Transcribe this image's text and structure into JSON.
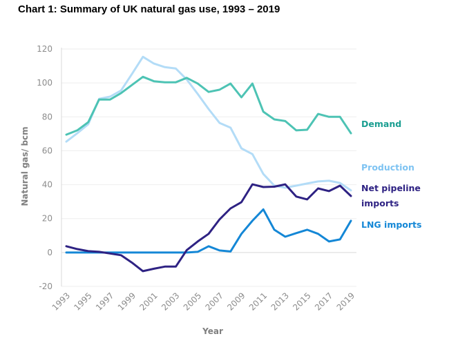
{
  "chart_data": {
    "type": "line",
    "title": "Chart 1: Summary of UK natural gas use, 1993 – 2019",
    "xlabel": "Year",
    "ylabel": "Natural gas/ bcm",
    "ylim": [
      -20,
      120
    ],
    "yticks": [
      -20,
      0,
      20,
      40,
      60,
      80,
      100,
      120
    ],
    "ytick_labels": [
      "-20",
      "0",
      "20",
      "40",
      "60",
      "80",
      "100",
      "120"
    ],
    "xtick_labels": [
      "1993",
      "1995",
      "1997",
      "1999",
      "2001",
      "2003",
      "2005",
      "2007",
      "2009",
      "2011",
      "2013",
      "2015",
      "2017",
      "2019"
    ],
    "grid": true,
    "legend_placement": "right (inline labels)",
    "x": [
      1993,
      1994,
      1995,
      1996,
      1997,
      1998,
      1999,
      2000,
      2001,
      2002,
      2003,
      2004,
      2005,
      2006,
      2007,
      2008,
      2009,
      2010,
      2011,
      2012,
      2013,
      2014,
      2015,
      2016,
      2017,
      2018,
      2019
    ],
    "series": [
      {
        "name": "Demand",
        "label_lines": [
          "Demand"
        ],
        "color": "#4dc3b4",
        "label_color": "#1a9e91",
        "values": [
          69.5,
          72,
          76.8,
          90.2,
          90.2,
          94,
          98.8,
          103.6,
          101,
          100.4,
          100.4,
          103,
          99.6,
          94.7,
          96,
          99.6,
          91.5,
          99.6,
          83,
          78.5,
          77.5,
          72,
          72.4,
          81.7,
          80,
          80,
          70.3
        ]
      },
      {
        "name": "Production",
        "label_lines": [
          "Production"
        ],
        "color": "#b3dcf7",
        "label_color": "#7ec3f2",
        "values": [
          65.4,
          70.3,
          75.6,
          90.6,
          91.9,
          95.5,
          105.3,
          115.4,
          111.4,
          109.3,
          108.5,
          102,
          93.5,
          84.6,
          76.4,
          73.6,
          61.4,
          58,
          46.3,
          39.4,
          38.2,
          39.4,
          40.7,
          41.9,
          42.3,
          41,
          36.6
        ]
      },
      {
        "name": "Net pipeline imports",
        "label_lines": [
          "Net pipeline",
          "imports"
        ],
        "color": "#2e2283",
        "label_color": "#2e2283",
        "values": [
          3.7,
          2,
          0.8,
          0.4,
          -0.6,
          -1.6,
          -6,
          -11,
          -9.6,
          -8.3,
          -8.3,
          1.4,
          6.5,
          11,
          19.5,
          26,
          29.7,
          40.2,
          38.6,
          38.8,
          40.2,
          33,
          31.3,
          37.8,
          36.2,
          39.4,
          33.3
        ]
      },
      {
        "name": "LNG imports",
        "label_lines": [
          "LNG imports"
        ],
        "color": "#1487d6",
        "label_color": "#1487d6",
        "values": [
          0,
          0,
          0,
          0,
          0,
          0,
          0,
          0,
          0,
          0,
          0,
          0,
          0.4,
          3.7,
          1.2,
          0.6,
          11,
          18.7,
          25.4,
          13.4,
          9.3,
          11.4,
          13.4,
          11,
          6.5,
          7.7,
          18.7
        ]
      }
    ]
  }
}
